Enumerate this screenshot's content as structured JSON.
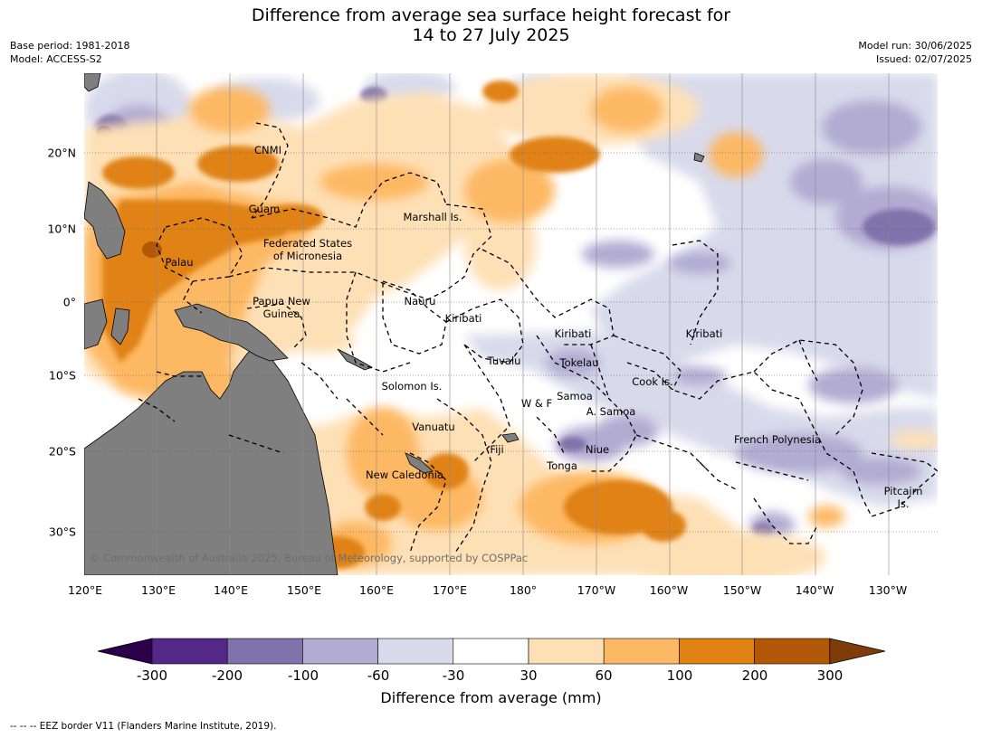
{
  "title_line1": "Difference from average sea surface height forecast for",
  "title_line2": "14 to 27 July 2025",
  "meta_left": {
    "base_period": "Base period: 1981-2018",
    "model": "Model: ACCESS-S2"
  },
  "meta_right": {
    "model_run": "Model run: 30/06/2025",
    "issued": "Issued: 02/07/2025"
  },
  "lon_ticks": [
    "120°E",
    "130°E",
    "140°E",
    "150°E",
    "160°E",
    "170°E",
    "180°",
    "170°W",
    "160°W",
    "150°W",
    "140°W",
    "130°W"
  ],
  "lat_ticks": [
    "20°N",
    "10°N",
    "0°",
    "10°S",
    "20°S",
    "30°S"
  ],
  "places": [
    {
      "id": "cnmi",
      "label": "CNMI"
    },
    {
      "id": "guam",
      "label": "Guam"
    },
    {
      "id": "marshall",
      "label": "Marshall Is."
    },
    {
      "id": "fsm",
      "label": "Federated States\nof Micronesia"
    },
    {
      "id": "palau",
      "label": "Palau"
    },
    {
      "id": "png",
      "label": "Papua New\nGuinea"
    },
    {
      "id": "nauru",
      "label": "Nauru"
    },
    {
      "id": "kiribati1",
      "label": "Kiribati"
    },
    {
      "id": "kiribati2",
      "label": "Kiribati"
    },
    {
      "id": "kiribati3",
      "label": "Kiribati"
    },
    {
      "id": "tuvalu",
      "label": "Tuvalu"
    },
    {
      "id": "tokelau",
      "label": "Tokelau"
    },
    {
      "id": "cook",
      "label": "Cook Is."
    },
    {
      "id": "solomon",
      "label": "Solomon Is."
    },
    {
      "id": "wf",
      "label": "W & F"
    },
    {
      "id": "samoa",
      "label": "Samoa"
    },
    {
      "id": "asamoa",
      "label": "A. Samoa"
    },
    {
      "id": "vanuatu",
      "label": "Vanuatu"
    },
    {
      "id": "fiji",
      "label": "Fiji"
    },
    {
      "id": "niue",
      "label": "Niue"
    },
    {
      "id": "tonga",
      "label": "Tonga"
    },
    {
      "id": "newcal",
      "label": "New Caledonia"
    },
    {
      "id": "frpoly",
      "label": "French Polynesia"
    },
    {
      "id": "pitcairn",
      "label": "Pitcairn\nIs."
    }
  ],
  "copyright": "© Commonwealth of Australia 2025, Bureau of Meteorology, supported by COSPPac",
  "colorbar": {
    "ticks": [
      "-300",
      "-200",
      "-100",
      "-60",
      "-30",
      "30",
      "60",
      "100",
      "200",
      "300"
    ],
    "label": "Difference from average (mm)",
    "colors": [
      "#2d004b",
      "#542788",
      "#8073ac",
      "#b2abd2",
      "#d8daeb",
      "#ffffff",
      "#fee0b6",
      "#fdb863",
      "#e08214",
      "#b35806",
      "#7f3b08"
    ]
  },
  "footnote": "--  --  -- EEZ border V11 (Flanders Marine Institute, 2019)."
}
